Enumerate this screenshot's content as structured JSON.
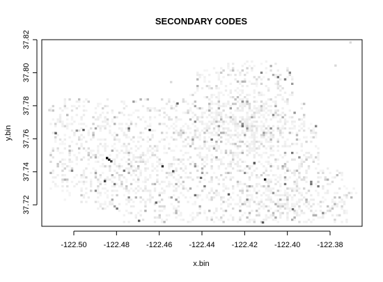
{
  "chart_data": {
    "type": "heatmap",
    "title": "SECONDARY CODES",
    "xlabel": "x.bin",
    "ylabel": "y.bin",
    "xlim": [
      -122.515,
      -122.365
    ],
    "ylim": [
      37.707,
      37.82
    ],
    "xticks": [
      "-122.50",
      "-122.48",
      "-122.46",
      "-122.44",
      "-122.42",
      "-122.40",
      "-122.38"
    ],
    "xtick_values": [
      -122.5,
      -122.48,
      -122.46,
      -122.44,
      -122.42,
      -122.4,
      -122.38
    ],
    "yticks": [
      "37.72",
      "37.74",
      "37.76",
      "37.78",
      "37.80",
      "37.82"
    ],
    "ytick_values": [
      37.72,
      37.74,
      37.76,
      37.78,
      37.8,
      37.82
    ],
    "grid": false,
    "legend": "none",
    "colormap": {
      "low": "#f2f2f2",
      "high": "#000000"
    },
    "dark_points": [
      {
        "x": -122.485,
        "y": 37.749,
        "v": 1.0
      },
      {
        "x": -122.484,
        "y": 37.748,
        "v": 0.85
      },
      {
        "x": -122.483,
        "y": 37.747,
        "v": 0.7
      },
      {
        "x": -122.465,
        "y": 37.766,
        "v": 0.75
      },
      {
        "x": -122.459,
        "y": 37.744,
        "v": 0.8
      },
      {
        "x": -122.454,
        "y": 37.741,
        "v": 0.6
      },
      {
        "x": -122.486,
        "y": 37.735,
        "v": 0.7
      },
      {
        "x": -122.496,
        "y": 37.766,
        "v": 0.55
      },
      {
        "x": -122.509,
        "y": 37.764,
        "v": 0.5
      },
      {
        "x": -122.411,
        "y": 37.736,
        "v": 0.9
      },
      {
        "x": -122.416,
        "y": 37.746,
        "v": 0.6
      },
      {
        "x": -122.428,
        "y": 37.727,
        "v": 0.55
      },
      {
        "x": -122.441,
        "y": 37.737,
        "v": 0.5
      },
      {
        "x": -122.462,
        "y": 37.722,
        "v": 0.5
      },
      {
        "x": -122.47,
        "y": 37.711,
        "v": 0.55
      },
      {
        "x": -122.452,
        "y": 37.782,
        "v": 0.5
      },
      {
        "x": -122.412,
        "y": 37.71,
        "v": 0.55
      },
      {
        "x": -122.398,
        "y": 37.718,
        "v": 0.45
      }
    ]
  }
}
